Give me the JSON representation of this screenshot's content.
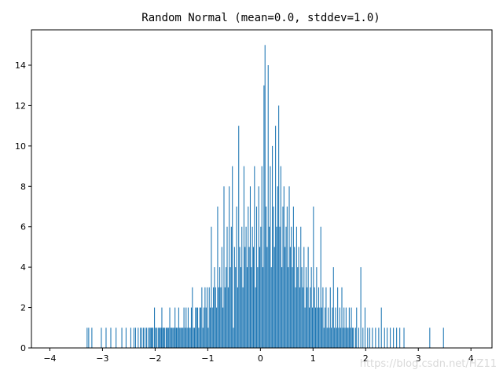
{
  "chart_data": {
    "type": "bar",
    "subtype": "histogram",
    "title": "Random Normal (mean=0.0, stddev=1.0)",
    "xlabel": "",
    "ylabel": "",
    "xlim": [
      -4.35,
      4.4
    ],
    "ylim": [
      0,
      15.75
    ],
    "x_ticks": [
      -4,
      -3,
      -2,
      -1,
      0,
      1,
      2,
      3,
      4
    ],
    "y_ticks": [
      0,
      2,
      4,
      6,
      8,
      10,
      12,
      14
    ],
    "grid": false,
    "legend": "none",
    "bar_color": "#1f77b4",
    "bins": 1000,
    "bin_edges_range": [
      -4.0,
      4.0
    ],
    "series": [
      {
        "values": {
          "-3.3": 1,
          "-3.27": 1,
          "-3.21": 1,
          "-3.03": 1,
          "-2.94": 1,
          "-2.85": 1,
          "-2.75": 1,
          "-2.64": 1,
          "-2.56": 1,
          "-2.47": 1,
          "-2.41": 1,
          "-2.38": 1,
          "-2.33": 1,
          "-2.29": 1,
          "-2.26": 1,
          "-2.23": 1,
          "-2.2": 1,
          "-2.17": 1,
          "-2.14": 1,
          "-2.11": 1,
          "-2.1": 1,
          "-2.08": 1,
          "-2.06": 1,
          "-2.05": 1,
          "-2.02": 2,
          "-2": 1,
          "-1.98": 1,
          "-1.95": 1,
          "-1.93": 1,
          "-1.91": 1,
          "-1.89": 1,
          "-1.88": 2,
          "-1.86": 1,
          "-1.84": 1,
          "-1.83": 1,
          "-1.8": 1,
          "-1.79": 1,
          "-1.77": 1,
          "-1.75": 1,
          "-1.73": 2,
          "-1.71": 1,
          "-1.69": 1,
          "-1.67": 1,
          "-1.65": 1,
          "-1.63": 2,
          "-1.61": 1,
          "-1.6": 1,
          "-1.58": 1,
          "-1.56": 2,
          "-1.54": 1,
          "-1.52": 1,
          "-1.5": 1,
          "-1.48": 1,
          "-1.46": 2,
          "-1.44": 1,
          "-1.42": 2,
          "-1.4": 1,
          "-1.38": 2,
          "-1.36": 1,
          "-1.34": 1,
          "-1.32": 2,
          "-1.3": 3,
          "-1.28": 1,
          "-1.26": 1,
          "-1.24": 2,
          "-1.22": 2,
          "-1.2": 2,
          "-1.18": 1,
          "-1.16": 2,
          "-1.14": 2,
          "-1.12": 3,
          "-1.1": 1,
          "-1.08": 2,
          "-1.06": 3,
          "-1.04": 2,
          "-1.02": 3,
          "-1": 1,
          "-0.98": 3,
          "-0.96": 2,
          "-0.94": 6,
          "-0.92": 2,
          "-0.9": 3,
          "-0.88": 4,
          "-0.86": 3,
          "-0.84": 2,
          "-0.82": 7,
          "-0.8": 3,
          "-0.78": 4,
          "-0.76": 3,
          "-0.74": 5,
          "-0.72": 2,
          "-0.7": 8,
          "-0.68": 3,
          "-0.66": 4,
          "-0.64": 6,
          "-0.62": 3,
          "-0.6": 8,
          "-0.58": 4,
          "-0.56": 6,
          "-0.54": 9,
          "-0.52": 1,
          "-0.5": 5,
          "-0.48": 4,
          "-0.46": 7,
          "-0.44": 3,
          "-0.42": 11,
          "-0.4": 5,
          "-0.38": 4,
          "-0.36": 6,
          "-0.34": 3,
          "-0.32": 9,
          "-0.3": 5,
          "-0.28": 6,
          "-0.26": 4,
          "-0.24": 7,
          "-0.22": 5,
          "-0.2": 8,
          "-0.18": 4,
          "-0.16": 6,
          "-0.14": 5,
          "-0.12": 9,
          "-0.1": 3,
          "-0.08": 7,
          "-0.06": 4,
          "-0.04": 8,
          "-0.02": 5,
          "0": 6,
          "0.02": 9,
          "0.04": 4,
          "0.06": 13,
          "0.08": 15,
          "0.1": 7,
          "0.12": 5,
          "0.14": 14,
          "0.16": 6,
          "0.18": 9,
          "0.2": 4,
          "0.22": 10,
          "0.24": 7,
          "0.26": 5,
          "0.28": 11,
          "0.3": 6,
          "0.32": 8,
          "0.34": 12,
          "0.36": 6,
          "0.38": 9,
          "0.4": 4,
          "0.42": 7,
          "0.44": 8,
          "0.46": 5,
          "0.48": 6,
          "0.5": 7,
          "0.52": 4,
          "0.54": 8,
          "0.56": 5,
          "0.58": 6,
          "0.6": 4,
          "0.62": 7,
          "0.64": 5,
          "0.66": 3,
          "0.68": 6,
          "0.7": 4,
          "0.72": 5,
          "0.74": 3,
          "0.76": 6,
          "0.78": 4,
          "0.8": 3,
          "0.82": 5,
          "0.84": 2,
          "0.86": 4,
          "0.88": 3,
          "0.9": 5,
          "0.92": 2,
          "0.94": 3,
          "0.96": 4,
          "0.98": 2,
          "1": 7,
          "1.02": 3,
          "1.04": 2,
          "1.06": 4,
          "1.08": 2,
          "1.1": 3,
          "1.12": 2,
          "1.14": 6,
          "1.16": 2,
          "1.18": 3,
          "1.2": 1,
          "1.22": 2,
          "1.24": 3,
          "1.26": 1,
          "1.28": 2,
          "1.3": 1,
          "1.32": 3,
          "1.34": 1,
          "1.36": 2,
          "1.38": 4,
          "1.4": 1,
          "1.42": 2,
          "1.44": 1,
          "1.46": 3,
          "1.48": 1,
          "1.5": 2,
          "1.52": 1,
          "1.54": 3,
          "1.56": 1,
          "1.58": 2,
          "1.6": 1,
          "1.62": 2,
          "1.64": 1,
          "1.66": 1,
          "1.68": 2,
          "1.7": 1,
          "1.72": 2,
          "1.74": 1,
          "1.76": 1,
          "1.8": 1,
          "1.82": 2,
          "1.86": 1,
          "1.9": 4,
          "1.94": 1,
          "1.98": 2,
          "2.03": 1,
          "2.07": 1,
          "2.12": 1,
          "2.18": 1,
          "2.24": 1,
          "2.29": 2,
          "2.35": 1,
          "2.4": 1,
          "2.46": 1,
          "2.52": 1,
          "2.58": 1,
          "2.64": 1,
          "2.72": 1,
          "3.21": 1,
          "3.47": 1
        }
      }
    ]
  },
  "watermark": "https://blog.csdn.net/HZ11"
}
